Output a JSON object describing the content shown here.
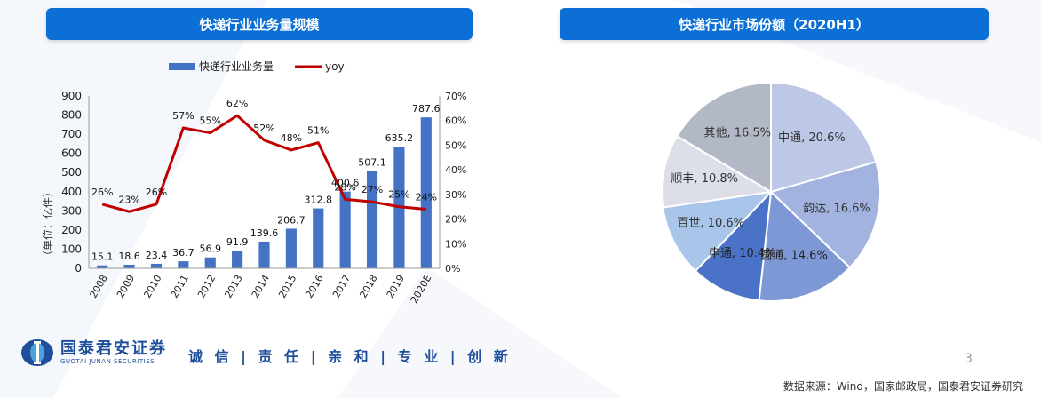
{
  "left_panel": {
    "title": "快递行业业务量规模"
  },
  "right_panel": {
    "title": "快递行业市场份额（2020H1）"
  },
  "chart_data": [
    {
      "type": "bar",
      "title": "快递行业业务量规模",
      "categories": [
        "2008",
        "2009",
        "2010",
        "2011",
        "2012",
        "2013",
        "2014",
        "2015",
        "2016",
        "2017",
        "2018",
        "2019",
        "2020E"
      ],
      "series": [
        {
          "name": "快递行业业务量",
          "type": "bar",
          "axis": "left",
          "color": "#4472c4",
          "values": [
            15.1,
            18.6,
            23.4,
            36.7,
            56.9,
            91.9,
            139.6,
            206.7,
            312.8,
            400.6,
            507.1,
            635.2,
            787.6
          ],
          "labels": [
            "15.1",
            "18.6",
            "23.4",
            "36.7",
            "56.9",
            "91.9",
            "139.6",
            "206.7",
            "312.8",
            "400.6",
            "507.1",
            "635.2",
            "787.6"
          ]
        },
        {
          "name": "yoy",
          "type": "line",
          "axis": "right",
          "color": "#c00000",
          "values": [
            26,
            23,
            26,
            57,
            55,
            62,
            52,
            48,
            51,
            28,
            27,
            25,
            24
          ],
          "labels": [
            "26%",
            "23%",
            "26%",
            "57%",
            "55%",
            "62%",
            "52%",
            "48%",
            "51%",
            "28%",
            "27%",
            "25%",
            "24%"
          ]
        }
      ],
      "ylabel": "（单位：亿件）",
      "ylim_left": [
        0,
        900
      ],
      "yticks_left": [
        "0",
        "100",
        "200",
        "300",
        "400",
        "500",
        "600",
        "700",
        "800",
        "900"
      ],
      "ylim_right": [
        0,
        70
      ],
      "yticks_right": [
        "0%",
        "10%",
        "20%",
        "30%",
        "40%",
        "50%",
        "60%",
        "70%"
      ],
      "legend_position": "top"
    },
    {
      "type": "pie",
      "title": "快递行业市场份额（2020H1）",
      "slices": [
        {
          "label": "中通",
          "value": 20.6,
          "text": "中通, 20.6%",
          "color": "#bcc8e6",
          "label_color": "#333333"
        },
        {
          "label": "韵达",
          "value": 16.6,
          "text": "韵达, 16.6%",
          "color": "#a3b3e0",
          "label_color": "#333333"
        },
        {
          "label": "圆通",
          "value": 14.6,
          "text": "圆通, 14.6%",
          "color": "#7e98d6",
          "label_color": "#222222"
        },
        {
          "label": "申通",
          "value": 10.4,
          "text": "申通, 10.4%",
          "color": "#4a72c7",
          "label_color": "#222222"
        },
        {
          "label": "百世",
          "value": 10.6,
          "text": "百世, 10.6%",
          "color": "#a9c6ea",
          "label_color": "#333333"
        },
        {
          "label": "顺丰",
          "value": 10.8,
          "text": "顺丰, 10.8%",
          "color": "#dcdfe8",
          "label_color": "#333333"
        },
        {
          "label": "其他",
          "value": 16.5,
          "text": "其他, 16.5%",
          "color": "#b3b8c6",
          "label_color": "#333333"
        }
      ]
    }
  ],
  "footer": {
    "logo_cn": "国泰君安证券",
    "logo_en": "GUOTAI JUNAN SECURITIES",
    "slogan": "诚 信 | 责 任 | 亲 和 | 专 业 | 创 新",
    "page_number": "3",
    "source": "数据来源：Wind，国家邮政局，国泰君安证券研究"
  }
}
